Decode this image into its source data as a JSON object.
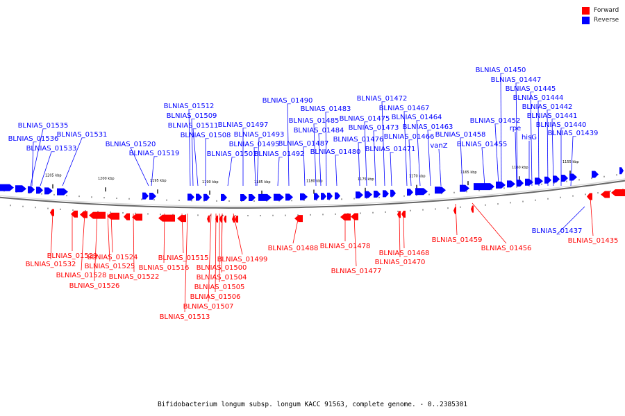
{
  "colors": {
    "forward": "#ff0000",
    "reverse": "#0000ff",
    "axis": "#888888"
  },
  "legend": [
    {
      "label": "Forward",
      "color": "#ff0000"
    },
    {
      "label": "Reverse",
      "color": "#0000ff"
    }
  ],
  "caption": "Bifidobacterium longum subsp. longum KACC 91563, complete genome. - 0..2385301",
  "axis": {
    "direction": "descending-left-to-right",
    "ticks": [
      "1205 kbp",
      "1200 kbp",
      "1195 kbp",
      "1190 kbp",
      "1185 kbp",
      "1180 kbp",
      "1175 kbp",
      "1170 kbp",
      "1165 kbp",
      "1160 kbp",
      "1155 kbp"
    ]
  },
  "reverse_genes": [
    "BLNIAS_01535",
    "BLNIAS_01536",
    "BLNIAS_01533",
    "BLNIAS_01531",
    "BLNIAS_01520",
    "BLNIAS_01519",
    "BLNIAS_01512",
    "BLNIAS_01509",
    "BLNIAS_01511",
    "BLNIAS_01508",
    "BLNIAS_01497",
    "BLNIAS_01501",
    "BLNIAS_01495",
    "BLNIAS_01493",
    "BLNIAS_01492",
    "BLNIAS_01490",
    "BLNIAS_01487",
    "BLNIAS_01485",
    "BLNIAS_01484",
    "BLNIAS_01483",
    "BLNIAS_01480",
    "BLNIAS_01476",
    "BLNIAS_01475",
    "BLNIAS_01473",
    "BLNIAS_01472",
    "BLNIAS_01471",
    "BLNIAS_01467",
    "BLNIAS_01466",
    "BLNIAS_01464",
    "BLNIAS_01463",
    "vanZ",
    "BLNIAS_01458",
    "BLNIAS_01455",
    "BLNIAS_01452",
    "BLNIAS_01450",
    "BLNIAS_01447",
    "rpe",
    "hisG",
    "BLNIAS_01445",
    "BLNIAS_01444",
    "BLNIAS_01442",
    "BLNIAS_01441",
    "BLNIAS_01440",
    "BLNIAS_01439",
    "BLNIAS_01437"
  ],
  "forward_genes": [
    "BLNIAS_01529",
    "BLNIAS_01532",
    "BLNIAS_01528",
    "BLNIAS_01526",
    "BLNIAS_01524",
    "BLNIAS_01525",
    "BLNIAS_01522",
    "BLNIAS_01516",
    "BLNIAS_01515",
    "BLNIAS_01513",
    "BLNIAS_01507",
    "BLNIAS_01506",
    "BLNIAS_01505",
    "BLNIAS_01504",
    "BLNIAS_01500",
    "BLNIAS_01499",
    "BLNIAS_01488",
    "BLNIAS_01478",
    "BLNIAS_01477",
    "BLNIAS_01468",
    "BLNIAS_01470",
    "BLNIAS_01459",
    "BLNIAS_01456",
    "BLNIAS_01435"
  ]
}
